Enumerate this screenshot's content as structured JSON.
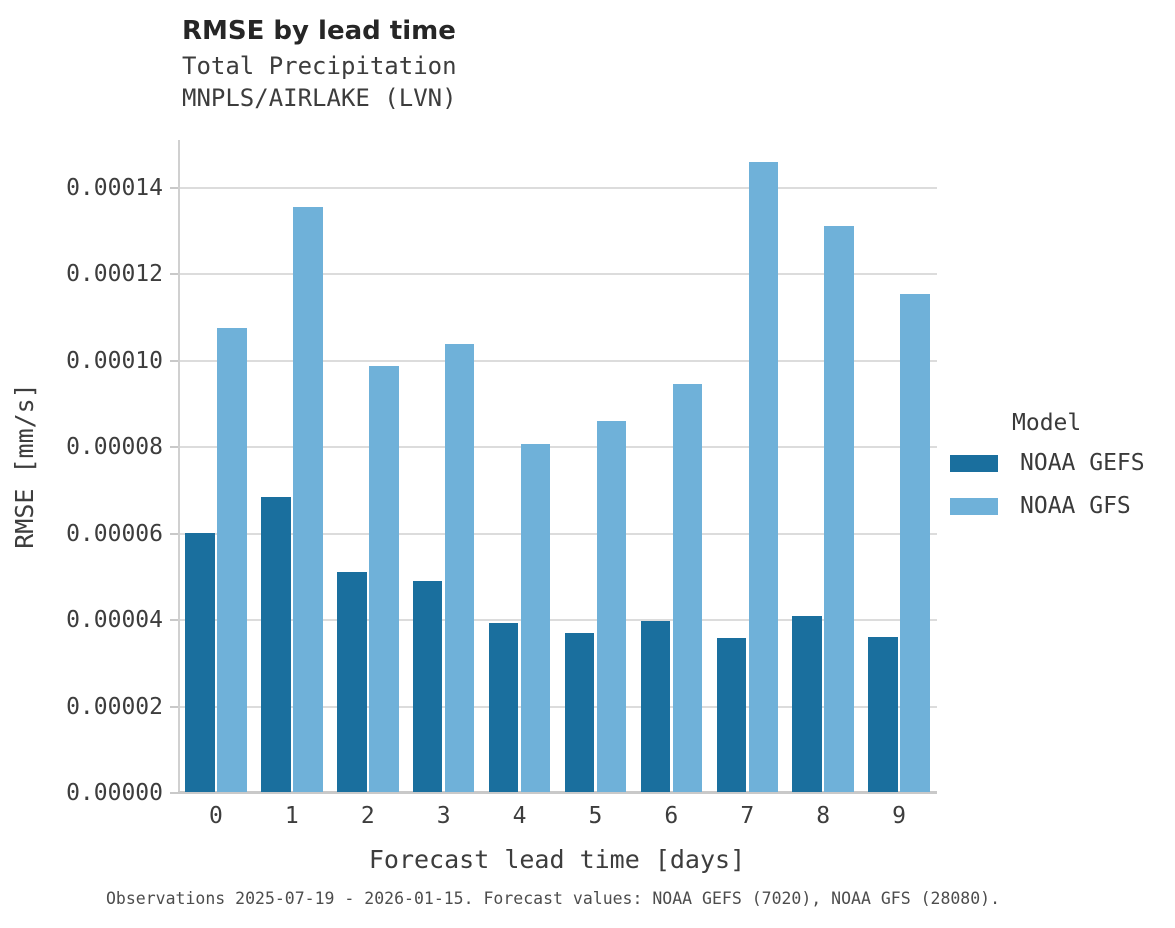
{
  "figure": {
    "title": "RMSE by lead time",
    "subtitle_line1": "Total Precipitation",
    "subtitle_line2": "MNPLS/AIRLAKE (LVN)",
    "footer": "Observations 2025-07-19 - 2026-01-15. Forecast values: NOAA GEFS (7020), NOAA GFS (28080)."
  },
  "chart_data": {
    "type": "bar",
    "title": "RMSE by lead time",
    "subtitle": [
      "Total Precipitation",
      "MNPLS/AIRLAKE (LVN)"
    ],
    "xlabel": "Forecast lead time [days]",
    "ylabel": "RMSE [mm/s]",
    "categories": [
      "0",
      "1",
      "2",
      "3",
      "4",
      "5",
      "6",
      "7",
      "8",
      "9"
    ],
    "series": [
      {
        "name": "NOAA GEFS",
        "color": "#1a6f9e",
        "values": [
          6e-05,
          6.83e-05,
          5.08e-05,
          4.89e-05,
          3.9e-05,
          3.68e-05,
          3.96e-05,
          3.56e-05,
          4.07e-05,
          3.58e-05
        ]
      },
      {
        "name": "NOAA GFS",
        "color": "#6fb1d9",
        "values": [
          0.0001074,
          0.0001353,
          9.86e-05,
          0.0001037,
          8.04e-05,
          8.59e-05,
          9.43e-05,
          0.0001456,
          0.0001308,
          0.0001152
        ]
      }
    ],
    "ylim": [
      0,
      0.000151
    ],
    "yticks": [
      0.0,
      2e-05,
      4e-05,
      6e-05,
      8e-05,
      0.0001,
      0.00012,
      0.00014
    ],
    "ytick_labels": [
      "0.00000",
      "0.00002",
      "0.00004",
      "0.00006",
      "0.00008",
      "0.00010",
      "0.00012",
      "0.00014"
    ],
    "grid": "horizontal",
    "legend": {
      "title": "Model",
      "position": "right"
    },
    "caption": "Observations 2025-07-19 - 2026-01-15. Forecast values: NOAA GEFS (7020), NOAA GFS (28080)."
  },
  "colors": {
    "gefs_bar": "#1a6f9e",
    "gfs_bar": "#6fb1d9",
    "gridline": "#dcdcdc",
    "axis": "#c9c9c9",
    "title_text": "#262626",
    "label_text": "#3d3d3d",
    "footer_text": "#4d4d4d",
    "background": "#ffffff"
  }
}
